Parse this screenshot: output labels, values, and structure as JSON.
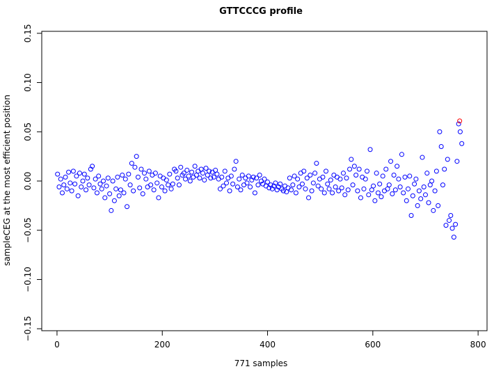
{
  "chart_data": {
    "type": "scatter",
    "title": "GTTCCCG profile",
    "x_label": "771 samples",
    "y_label": "sampleCEG at the most efficient position",
    "xlim": [
      -29,
      817
    ],
    "ylim": [
      -0.152,
      0.152
    ],
    "xticks": [
      0,
      200,
      400,
      600,
      800
    ],
    "yticks": [
      {
        "value": -0.15,
        "label": "−0.15"
      },
      {
        "value": -0.1,
        "label": "−0.10"
      },
      {
        "value": -0.05,
        "label": "−0.05"
      },
      {
        "value": 0,
        "label": "0.00"
      },
      0.05,
      {
        "value": 0.1,
        "label": "0.10"
      },
      0.15
    ],
    "series": [
      {
        "color": "#0000ff",
        "x": [
          1,
          4,
          7,
          10,
          13,
          16,
          19,
          22,
          25,
          28,
          31,
          34,
          37,
          40,
          43,
          46,
          49,
          52,
          55,
          58,
          61,
          64,
          67,
          70,
          73,
          76,
          79,
          82,
          85,
          88,
          91,
          94,
          97,
          100,
          103,
          106,
          109,
          112,
          115,
          118,
          121,
          124,
          127,
          130,
          133,
          136,
          139,
          142,
          145,
          148,
          151,
          154,
          157,
          160,
          163,
          166,
          169,
          172,
          175,
          178,
          181,
          184,
          187,
          190,
          193,
          196,
          199,
          202,
          205,
          208,
          211,
          214,
          217,
          220,
          223,
          226,
          229,
          232,
          235,
          238,
          241,
          244,
          247,
          250,
          253,
          256,
          259,
          262,
          265,
          268,
          271,
          274,
          277,
          280,
          283,
          286,
          289,
          292,
          295,
          298,
          301,
          304,
          307,
          310,
          313,
          316,
          319,
          322,
          325,
          328,
          331,
          334,
          337,
          340,
          343,
          346,
          349,
          352,
          355,
          358,
          361,
          364,
          367,
          370,
          373,
          376,
          379,
          382,
          385,
          388,
          391,
          394,
          397,
          400,
          403,
          406,
          409,
          412,
          415,
          418,
          421,
          424,
          427,
          430,
          433,
          436,
          439,
          442,
          445,
          448,
          451,
          454,
          457,
          460,
          463,
          466,
          469,
          472,
          475,
          478,
          481,
          484,
          487,
          490,
          493,
          496,
          499,
          502,
          505,
          508,
          511,
          514,
          517,
          520,
          523,
          526,
          529,
          532,
          535,
          538,
          541,
          544,
          547,
          550,
          553,
          556,
          559,
          562,
          565,
          568,
          571,
          574,
          577,
          580,
          583,
          586,
          589,
          592,
          595,
          598,
          601,
          604,
          607,
          610,
          613,
          616,
          619,
          622,
          625,
          628,
          631,
          634,
          637,
          640,
          643,
          646,
          649,
          652,
          655,
          658,
          661,
          664,
          667,
          670,
          673,
          676,
          679,
          682,
          685,
          688,
          691,
          694,
          697,
          700,
          703,
          706,
          709,
          712,
          715,
          718,
          721,
          724,
          727,
          730,
          733,
          736,
          739,
          742,
          745,
          748,
          751,
          754,
          757,
          760,
          763,
          766,
          769
        ],
        "values": [
          0.007,
          -0.006,
          0.002,
          -0.012,
          -0.004,
          0.004,
          -0.008,
          0.009,
          -0.002,
          -0.01,
          0.01,
          -0.003,
          0.005,
          -0.015,
          0.008,
          -0.006,
          0.0,
          0.007,
          -0.009,
          0.003,
          -0.004,
          0.012,
          0.015,
          -0.007,
          0.002,
          -0.012,
          0.005,
          -0.003,
          -0.008,
          0.0,
          -0.017,
          -0.005,
          0.003,
          -0.013,
          -0.03,
          0.0,
          -0.02,
          -0.008,
          0.004,
          -0.015,
          -0.009,
          0.006,
          -0.012,
          0.002,
          -0.026,
          0.007,
          -0.004,
          0.018,
          -0.01,
          0.014,
          0.025,
          0.004,
          -0.007,
          0.012,
          -0.013,
          0.008,
          0.002,
          -0.006,
          0.01,
          -0.004,
          0.006,
          -0.009,
          0.008,
          -0.002,
          -0.017,
          0.005,
          -0.006,
          0.003,
          -0.01,
          0.001,
          -0.004,
          0.007,
          -0.008,
          -0.003,
          0.012,
          0.01,
          0.003,
          -0.004,
          0.014,
          0.006,
          0.008,
          0.002,
          0.011,
          0.005,
          0.0,
          0.009,
          0.004,
          0.015,
          0.006,
          0.01,
          0.003,
          0.012,
          0.008,
          0.001,
          0.013,
          0.006,
          0.01,
          0.003,
          0.009,
          0.004,
          0.011,
          0.007,
          0.002,
          -0.008,
          0.004,
          -0.005,
          0.01,
          -0.002,
          0.003,
          -0.01,
          0.005,
          -0.003,
          0.012,
          0.02,
          -0.006,
          0.002,
          -0.009,
          0.006,
          -0.004,
          0.003,
          -0.002,
          0.005,
          -0.006,
          0.001,
          0.004,
          -0.012,
          0.003,
          -0.004,
          0.006,
          0.0,
          -0.003,
          0.002,
          -0.005,
          -0.001,
          -0.007,
          -0.004,
          -0.008,
          -0.005,
          -0.002,
          -0.009,
          -0.006,
          -0.003,
          -0.008,
          -0.01,
          -0.005,
          -0.011,
          -0.007,
          0.003,
          -0.009,
          -0.004,
          0.005,
          -0.012,
          0.002,
          -0.006,
          0.008,
          -0.003,
          0.01,
          -0.008,
          0.003,
          -0.017,
          0.006,
          -0.01,
          -0.002,
          0.008,
          0.018,
          -0.005,
          0.002,
          -0.008,
          0.004,
          -0.012,
          0.01,
          -0.003,
          -0.008,
          0.001,
          -0.012,
          0.006,
          -0.006,
          0.004,
          -0.01,
          0.002,
          -0.007,
          0.008,
          -0.014,
          0.003,
          -0.009,
          0.012,
          0.022,
          -0.004,
          0.015,
          0.006,
          -0.01,
          0.012,
          -0.017,
          0.004,
          -0.008,
          0.002,
          0.01,
          -0.014,
          0.032,
          -0.009,
          -0.005,
          -0.02,
          0.008,
          -0.012,
          -0.003,
          -0.016,
          0.005,
          -0.01,
          0.012,
          -0.008,
          -0.004,
          0.02,
          -0.013,
          0.006,
          -0.009,
          0.015,
          0.002,
          -0.006,
          0.027,
          -0.012,
          0.004,
          -0.02,
          -0.008,
          0.005,
          -0.035,
          -0.015,
          -0.003,
          0.002,
          -0.025,
          -0.01,
          -0.018,
          0.024,
          -0.006,
          -0.014,
          0.008,
          -0.022,
          -0.004,
          0.0,
          -0.03,
          -0.01,
          0.01,
          -0.025,
          0.05,
          0.035,
          -0.004,
          0.012,
          -0.045,
          0.022,
          -0.04,
          -0.035,
          -0.048,
          -0.057,
          -0.044,
          0.02,
          0.058,
          0.05,
          0.038
        ]
      },
      {
        "color": "#ff0000",
        "x": [
          765
        ],
        "values": [
          0.061
        ]
      }
    ]
  }
}
